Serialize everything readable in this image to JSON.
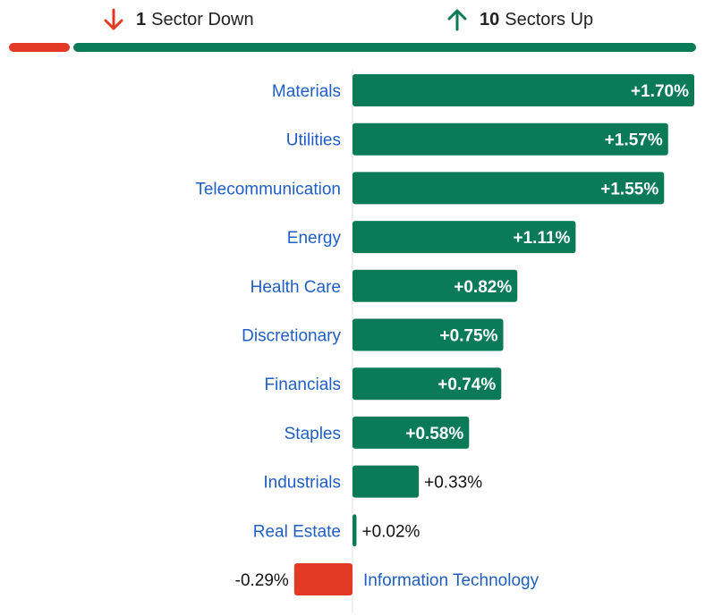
{
  "summary": {
    "down_count": "1",
    "down_label": "Sector Down",
    "up_count": "10",
    "up_label": "Sectors Up",
    "down_color": "#e33a25",
    "up_color": "#0b7a57"
  },
  "chart_data": {
    "type": "bar",
    "orientation": "horizontal",
    "title": "",
    "xlabel": "",
    "ylabel": "",
    "xlim": [
      -0.3,
      1.7
    ],
    "categories": [
      "Materials",
      "Utilities",
      "Telecommunication",
      "Energy",
      "Health Care",
      "Discretionary",
      "Financials",
      "Staples",
      "Industrials",
      "Real Estate",
      "Information Technology"
    ],
    "values": [
      1.7,
      1.57,
      1.55,
      1.11,
      0.82,
      0.75,
      0.74,
      0.58,
      0.33,
      0.02,
      -0.29
    ],
    "value_labels": [
      "+1.70%",
      "+1.57%",
      "+1.55%",
      "+1.11%",
      "+0.82%",
      "+0.75%",
      "+0.74%",
      "+0.58%",
      "+0.33%",
      "+0.02%",
      "-0.29%"
    ],
    "positive_color": "#0b7a57",
    "negative_color": "#e33a25",
    "grid": false,
    "legend": "none"
  }
}
